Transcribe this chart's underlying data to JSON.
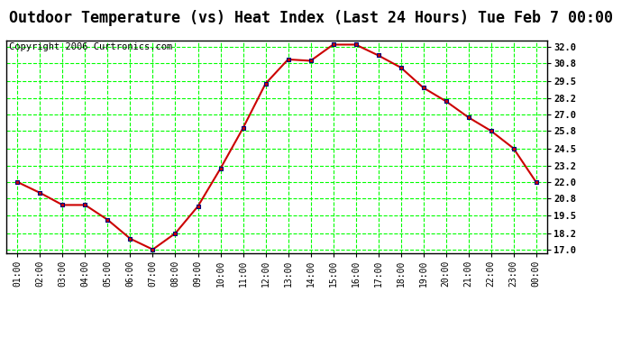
{
  "title": "Outdoor Temperature (vs) Heat Index (Last 24 Hours) Tue Feb 7 00:00",
  "copyright": "Copyright 2006 Curtronics.com",
  "x_labels": [
    "01:00",
    "02:00",
    "03:00",
    "04:00",
    "05:00",
    "06:00",
    "07:00",
    "08:00",
    "09:00",
    "10:00",
    "11:00",
    "12:00",
    "13:00",
    "14:00",
    "15:00",
    "16:00",
    "17:00",
    "18:00",
    "19:00",
    "20:00",
    "21:00",
    "22:00",
    "23:00",
    "00:00"
  ],
  "y_values": [
    22.0,
    21.2,
    20.3,
    20.3,
    19.2,
    17.8,
    17.0,
    18.2,
    20.2,
    23.0,
    26.0,
    29.3,
    31.1,
    31.0,
    32.2,
    32.2,
    31.4,
    30.5,
    29.0,
    28.0,
    26.8,
    25.8,
    24.5,
    22.0
  ],
  "ylim_min": 16.7,
  "ylim_max": 32.5,
  "y_ticks": [
    17.0,
    18.2,
    19.5,
    20.8,
    22.0,
    23.2,
    24.5,
    25.8,
    27.0,
    28.2,
    29.5,
    30.8,
    32.0
  ],
  "line_color": "#cc0000",
  "marker_color": "#cc0000",
  "marker_edge_color": "#000080",
  "bg_color": "#ffffff",
  "grid_color": "#00ff00",
  "title_fontsize": 12,
  "copyright_fontsize": 7.5
}
